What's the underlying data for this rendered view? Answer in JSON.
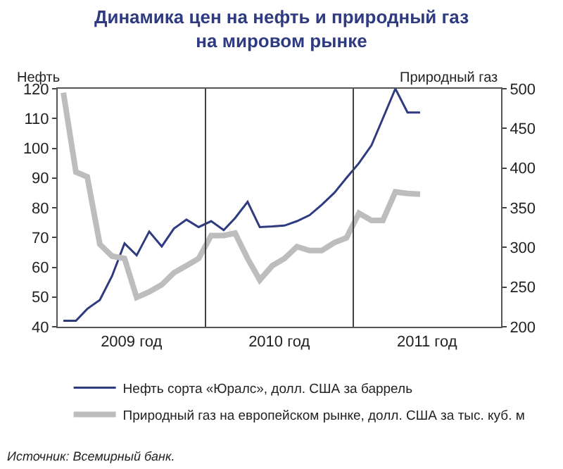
{
  "chart_data": {
    "type": "line",
    "title": "Динамика цен на нефть и природный газ\nна мировом рынке",
    "ylabel": "Нефть",
    "y2label": "Природный газ",
    "x": [
      "2009-01-15",
      "2009-02-15",
      "2009-03-15",
      "2009-04-15",
      "2009-05-15",
      "2009-06-15",
      "2009-07-15",
      "2009-08-15",
      "2009-09-15",
      "2009-10-15",
      "2009-11-15",
      "2009-12-15",
      "2010-01-15",
      "2010-02-15",
      "2010-03-15",
      "2010-04-15",
      "2010-05-15",
      "2010-06-15",
      "2010-07-15",
      "2010-08-15",
      "2010-09-15",
      "2010-10-15",
      "2010-11-15",
      "2010-12-15",
      "2011-01-15",
      "2011-02-15",
      "2011-03-15",
      "2011-04-15",
      "2011-05-15",
      "2011-06-15"
    ],
    "series": [
      {
        "name": "Нефть сорта «Юралс», долл. США за баррель",
        "color": "#2e3b80",
        "values": [
          42,
          42,
          46,
          49,
          57,
          68,
          64,
          72,
          67,
          73,
          76,
          73.5,
          75.5,
          72.5,
          76.5,
          82,
          73.5,
          73.7,
          74,
          75.5,
          77.5,
          81,
          85,
          90,
          95,
          101,
          110,
          120,
          112,
          112
        ]
      },
      {
        "name": "Природный газ на европейском рынке, долл. США за тыс. куб. м",
        "color": "#bdbdbd",
        "axis": "y2",
        "values": [
          495,
          395,
          389,
          304,
          289,
          286,
          237,
          244,
          253,
          268,
          277,
          286,
          315,
          315,
          318,
          286,
          259,
          277,
          286,
          301,
          296,
          296,
          306,
          312,
          343,
          334,
          334,
          370,
          368,
          367
        ]
      }
    ],
    "xlim": [
      "2009-01-01",
      "2012-01-01"
    ],
    "xticks": [
      {
        "value": "2009-07-02",
        "label": "2009 год"
      },
      {
        "value": "2010-07-02",
        "label": "2010 год"
      },
      {
        "value": "2011-07-02",
        "label": "2011 год"
      }
    ],
    "ylim": [
      40,
      120
    ],
    "yticks": [
      40,
      50,
      60,
      70,
      80,
      90,
      100,
      110,
      120
    ],
    "y2lim": [
      200,
      500
    ],
    "y2ticks": [
      200,
      250,
      300,
      350,
      400,
      450,
      500
    ],
    "ref_lines": [
      {
        "axis": "x",
        "value": "2010-01-01",
        "color": "#404040"
      },
      {
        "axis": "x",
        "value": "2011-01-01",
        "color": "#404040"
      }
    ],
    "legend": "bottom",
    "marker": "none",
    "line_style": "solid",
    "annotations": [
      "Источник: Всемирный банк."
    ]
  }
}
